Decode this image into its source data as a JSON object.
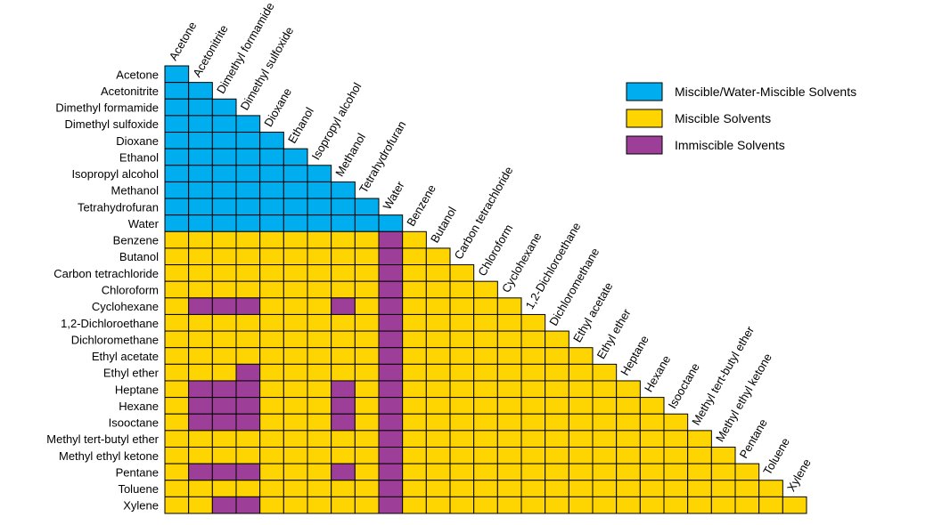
{
  "chart_data": {
    "type": "heatmap",
    "title": "",
    "solvents": [
      "Acetone",
      "Acetonitrite",
      "Dimethyl formamide",
      "Dimethyl sulfoxide",
      "Dioxane",
      "Ethanol",
      "Isopropyl alcohol",
      "Methanol",
      "Tetrahydrofuran",
      "Water",
      "Benzene",
      "Butanol",
      "Carbon tetrachloride",
      "Chloroform",
      "Cyclohexane",
      "1,2-Dichloroethane",
      "Dichloromethane",
      "Ethyl acetate",
      "Ethyl ether",
      "Heptane",
      "Hexane",
      "Isooctane",
      "Methyl tert-butyl ether",
      "Methyl ethyl ketone",
      "Pentane",
      "Toluene",
      "Xylene"
    ],
    "category_codes": {
      "W": "Miscible/Water-Miscible Solvents",
      "M": "Miscible Solvents",
      "I": "Immiscible Solvents"
    },
    "matrix_lower_triangle": [
      "W",
      "WW",
      "WWW",
      "WWWW",
      "WWWWW",
      "WWWWWW",
      "WWWWWWW",
      "WWWWWWWW",
      "WWWWWWWWW",
      "WWWWWWWWWW",
      "MMMMMMMMMIM",
      "MMMMMMMMMIMM",
      "MMMMMMMMMIMMM",
      "MMMMMMMMMIMMMM",
      "MIIIMMMIMIMMMMM",
      "MMMMMMMMMIMMMMMM",
      "MMMMMMMMMIMMMMMMM",
      "MMMMMMMMMIMMMMMMMM",
      "MMMIMMMMMIMMMMMMMMM",
      "MIIIMMMIMIMMMMMMMMMM",
      "MIIIMMMIMIMMMMMMMMMMM",
      "MIIIMMMIMIMMMMMMMMMMMM",
      "MMMMMMMMMIMMMMMMMMMMMMM",
      "MMMMMMMMMIMMMMMMMMMMMMMM",
      "MIIIMMMIMIMMMMMMMMMMMMMMM",
      "MMMMMMMMMIMMMMMMMMMMMMMMMM",
      "MMIIMMMMMIMMMMMMMMMMMMMMMMM"
    ],
    "legend": {
      "placement": "top-right",
      "entries": [
        {
          "code": "W",
          "label": "Miscible/Water-Miscible Solvents",
          "color": "#00AEEF"
        },
        {
          "code": "M",
          "label": "Miscible Solvents",
          "color": "#FFD500"
        },
        {
          "code": "I",
          "label": "Immiscible Solvents",
          "color": "#9D3F98"
        }
      ]
    }
  }
}
